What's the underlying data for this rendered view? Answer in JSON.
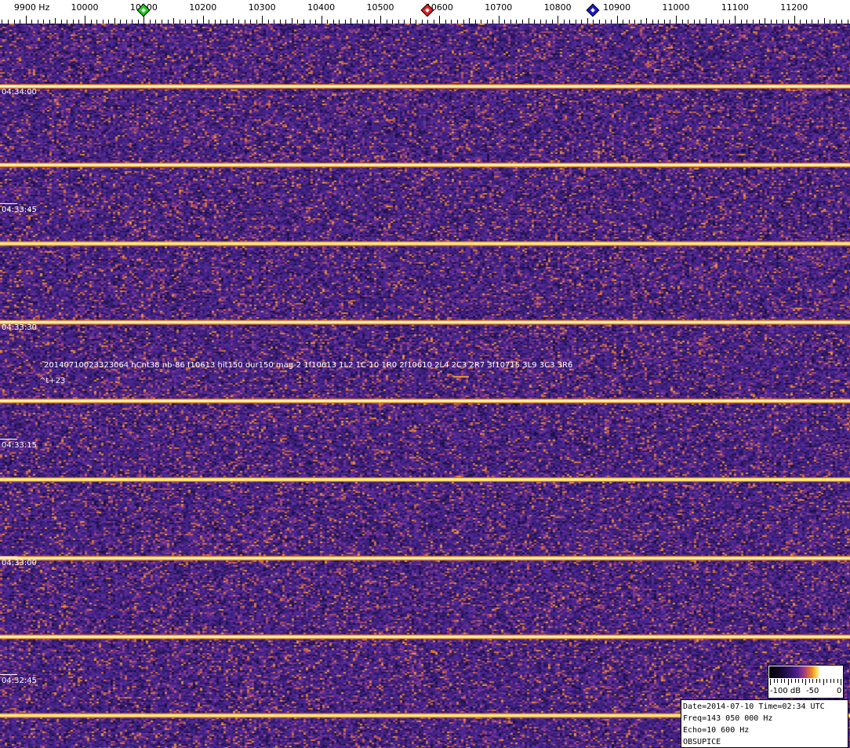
{
  "frequency_axis": {
    "labels": [
      "9900 Hz",
      "10000",
      "10100",
      "10200",
      "10300",
      "10400",
      "10500",
      "10600",
      "10700",
      "10800",
      "10900",
      "11000",
      "11100",
      "11200"
    ],
    "markers": [
      {
        "name": "green",
        "freq_hz": 10100,
        "color": "#22cc22"
      },
      {
        "name": "red",
        "freq_hz": 10580,
        "color": "#dd2222"
      },
      {
        "name": "blue",
        "freq_hz": 10860,
        "color": "#1a1acc"
      }
    ]
  },
  "time_labels": [
    "04:34:00",
    "04:33:45",
    "04:33:30",
    "04:33:15",
    "04:33:00",
    "04:32:45"
  ],
  "annotation": {
    "line1": "20140710023323064 hCnt38 nb-86 f10613 hit150 dur150 mag-2 1f10613 1L2 1C-10 1R0 2f10610 2L4 2C3 2R7 3f10715 3L9 3C3 3R6",
    "line2": "^t+23"
  },
  "colorbar": {
    "labels": [
      "-100 dB",
      "-50",
      "0"
    ]
  },
  "info": {
    "date_time": "Date=2014-07-10 Time=02:34 UTC",
    "freq": "Freq=143 050 000 Hz",
    "echo": "Echo=10 600 Hz",
    "station": "OBSUPICE"
  },
  "colors": {
    "background": "#3b1f78",
    "noise_hot": "#e07a30",
    "line": "#ffd848"
  }
}
